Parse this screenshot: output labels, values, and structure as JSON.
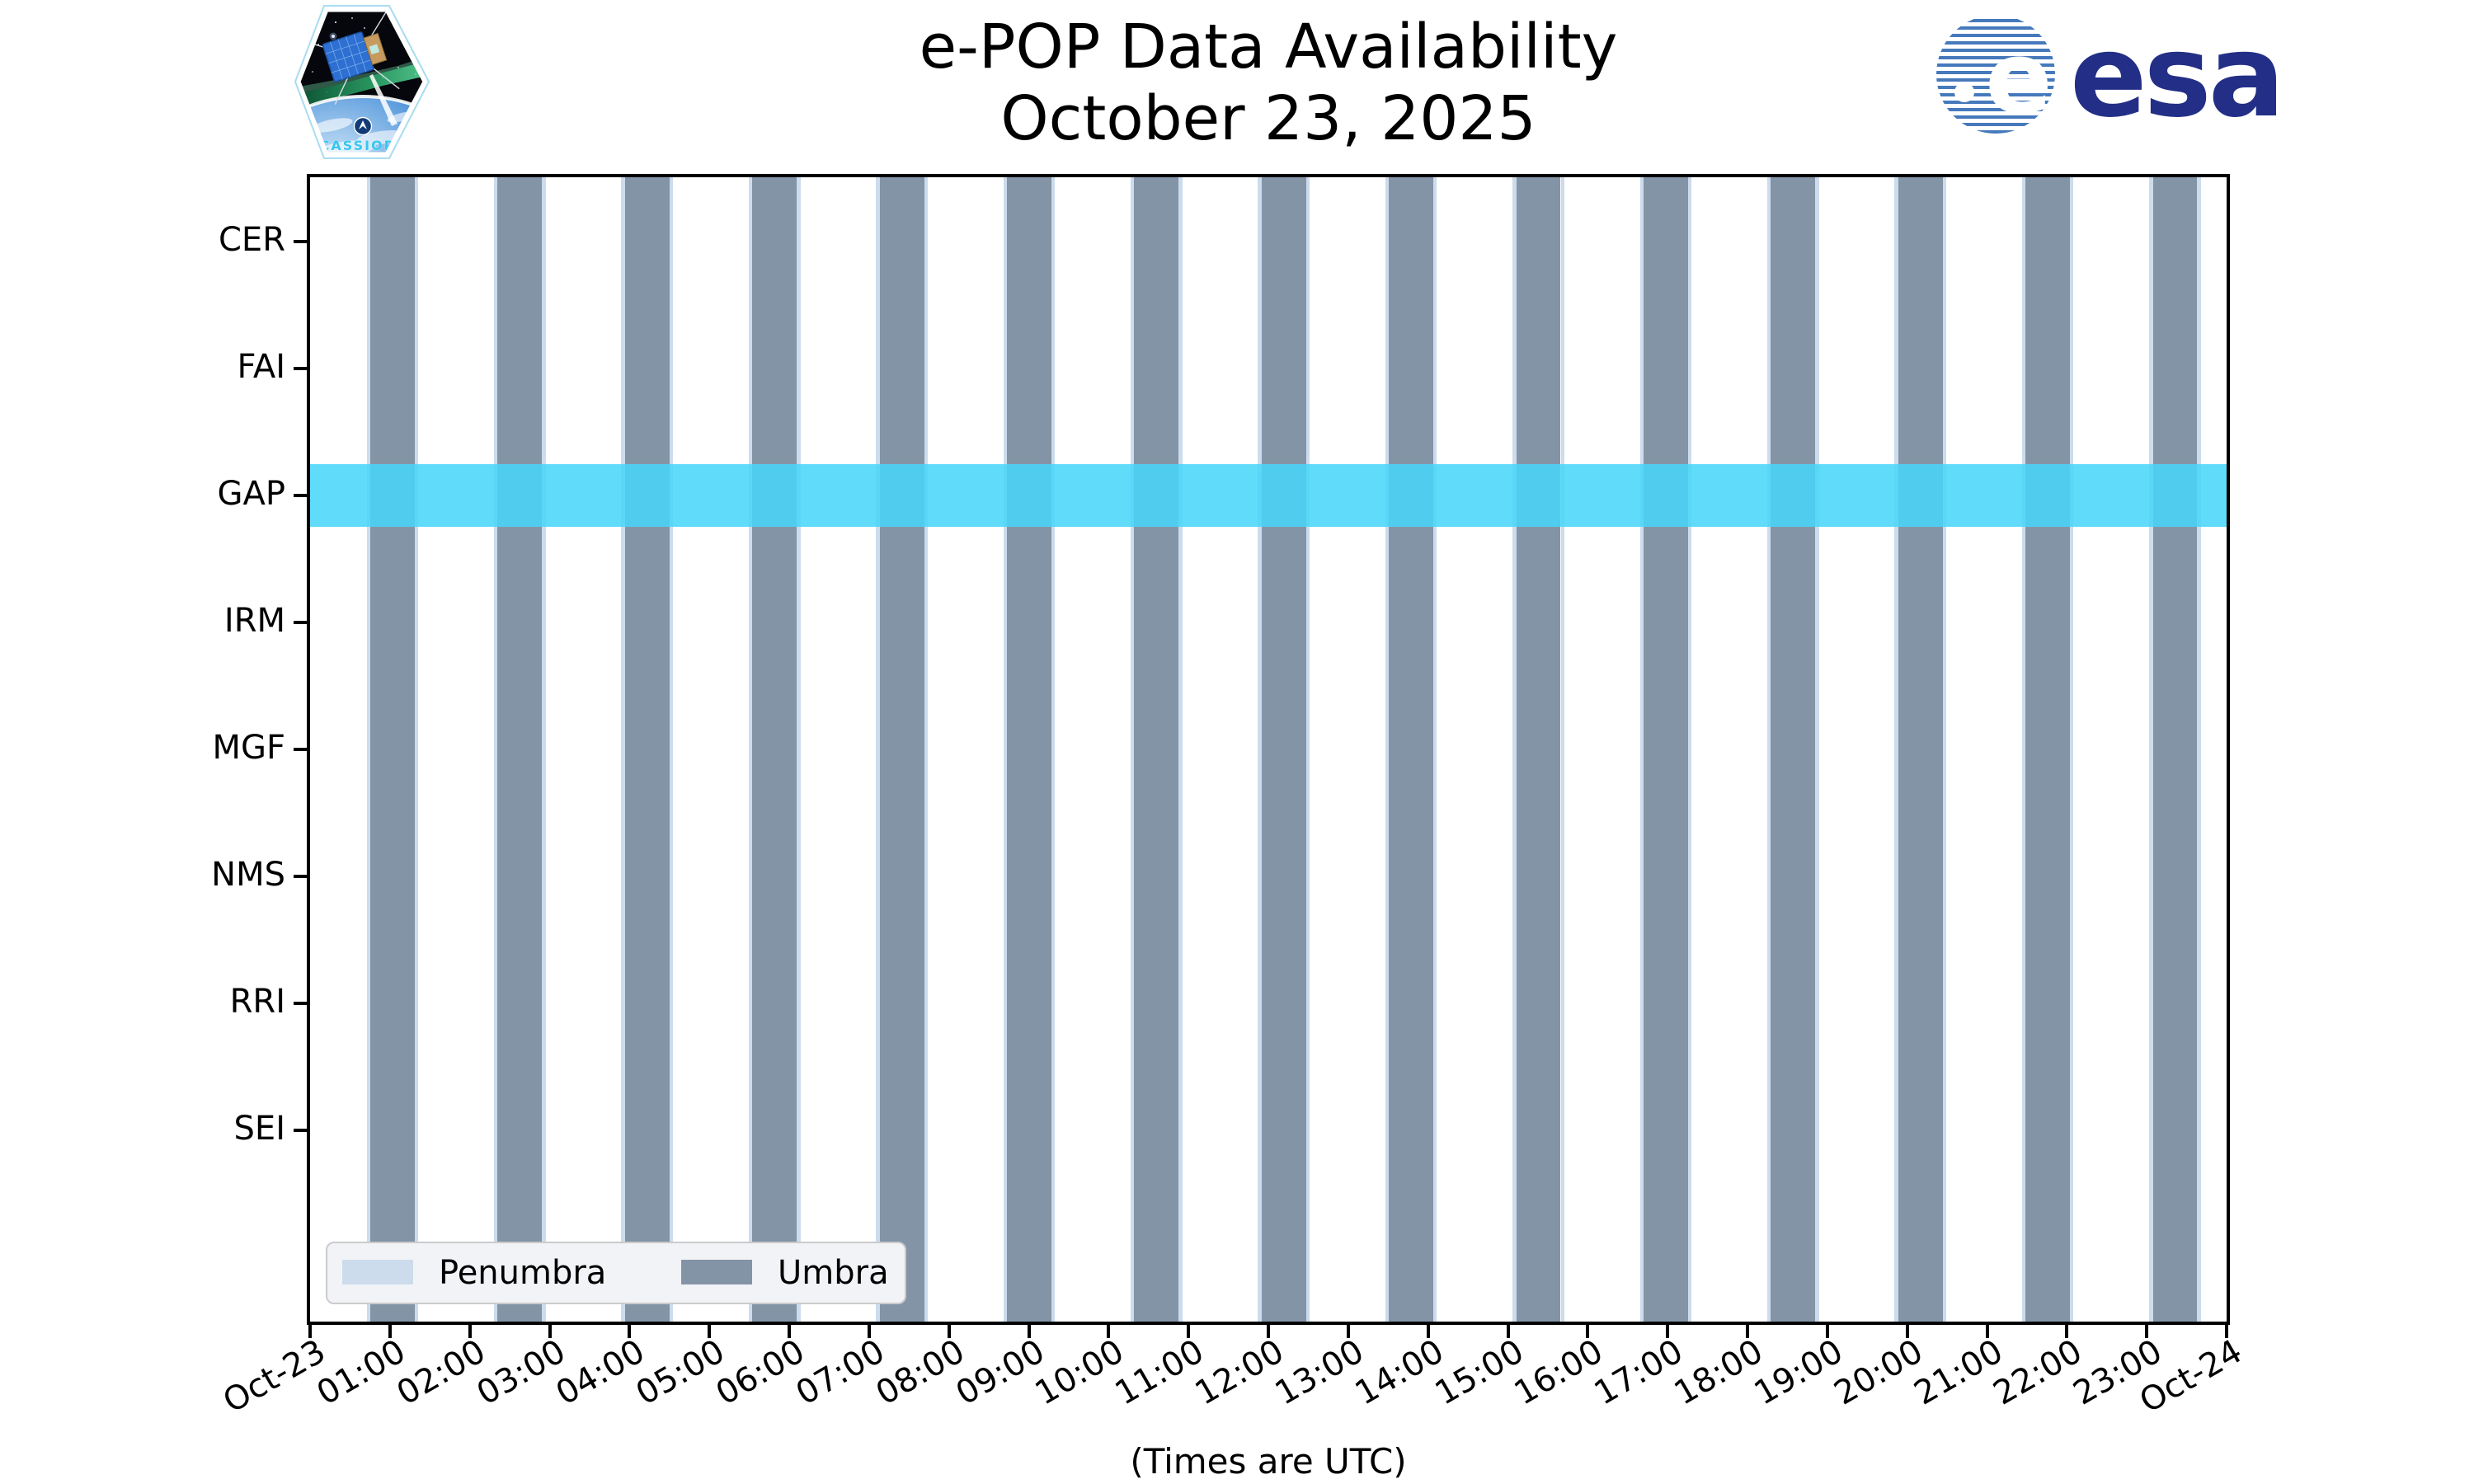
{
  "header": {
    "title_line1": "e-POP Data Availability",
    "title_line2": "October 23, 2025",
    "cassiope_label": "CASSIOPE",
    "esa_wordmark": "esa"
  },
  "chart_data": {
    "type": "timeline-availability",
    "title": "e-POP Data Availability",
    "subtitle": "October 23, 2025",
    "caption": "(Times are UTC)",
    "instruments": [
      "CER",
      "FAI",
      "GAP",
      "IRM",
      "MGF",
      "NMS",
      "RRI",
      "SEI"
    ],
    "x_axis": {
      "range_hours": [
        0,
        24
      ],
      "tick_labels": [
        "Oct-23",
        "01:00",
        "02:00",
        "03:00",
        "04:00",
        "05:00",
        "06:00",
        "07:00",
        "08:00",
        "09:00",
        "10:00",
        "11:00",
        "12:00",
        "13:00",
        "14:00",
        "15:00",
        "16:00",
        "17:00",
        "18:00",
        "19:00",
        "20:00",
        "21:00",
        "22:00",
        "23:00",
        "Oct-24"
      ],
      "tick_rotation_deg": 30
    },
    "gap_availability": {
      "instrument": "GAP",
      "start_hour": 0.0,
      "end_hour": 24.0
    },
    "umbra_intervals_hours": [
      [
        0.754,
        1.312
      ],
      [
        2.348,
        2.906
      ],
      [
        3.943,
        4.501
      ],
      [
        5.537,
        6.095
      ],
      [
        7.132,
        7.689
      ],
      [
        8.726,
        9.284
      ],
      [
        10.32,
        10.878
      ],
      [
        11.915,
        12.473
      ],
      [
        13.509,
        14.067
      ],
      [
        15.104,
        15.661
      ],
      [
        16.698,
        17.256
      ],
      [
        18.292,
        18.85
      ],
      [
        19.887,
        20.445
      ],
      [
        21.481,
        22.039
      ],
      [
        23.076,
        23.633
      ]
    ],
    "penumbra_pad_hours": 0.045,
    "legend": [
      {
        "label": "Penumbra",
        "color_hex": "#ccdcec"
      },
      {
        "label": "Umbra",
        "color_hex": "#8494a7"
      }
    ],
    "colors": {
      "umbra_hex": "#8494a7",
      "penumbra_hex": "#ccdcec",
      "gap_band_hex": "#48d6f8",
      "axis_hex": "#000000",
      "legend_bg_hex": "#f2f3f7",
      "esa_navy_hex": "#232f86",
      "esa_stripe_hex": "#4679bc",
      "cassiope_cyan_hex": "#38c6f0"
    }
  }
}
